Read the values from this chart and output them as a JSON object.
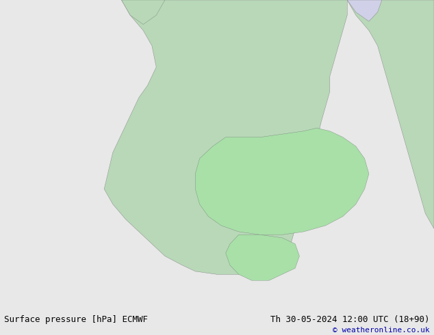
{
  "title_left": "Surface pressure [hPa] ECMWF",
  "title_right": "Th 30-05-2024 12:00 UTC (18+90)",
  "copyright": "© weatheronline.co.uk",
  "bg_color": "#e8e8e8",
  "land_color": "#c8e6c8",
  "ocean_color": "#ddeeff",
  "text_color_black": "#000000",
  "text_color_blue": "#0000cc",
  "text_color_red": "#cc0000",
  "footer_bg": "#ffffff",
  "fig_width": 6.34,
  "fig_height": 4.9,
  "dpi": 100
}
